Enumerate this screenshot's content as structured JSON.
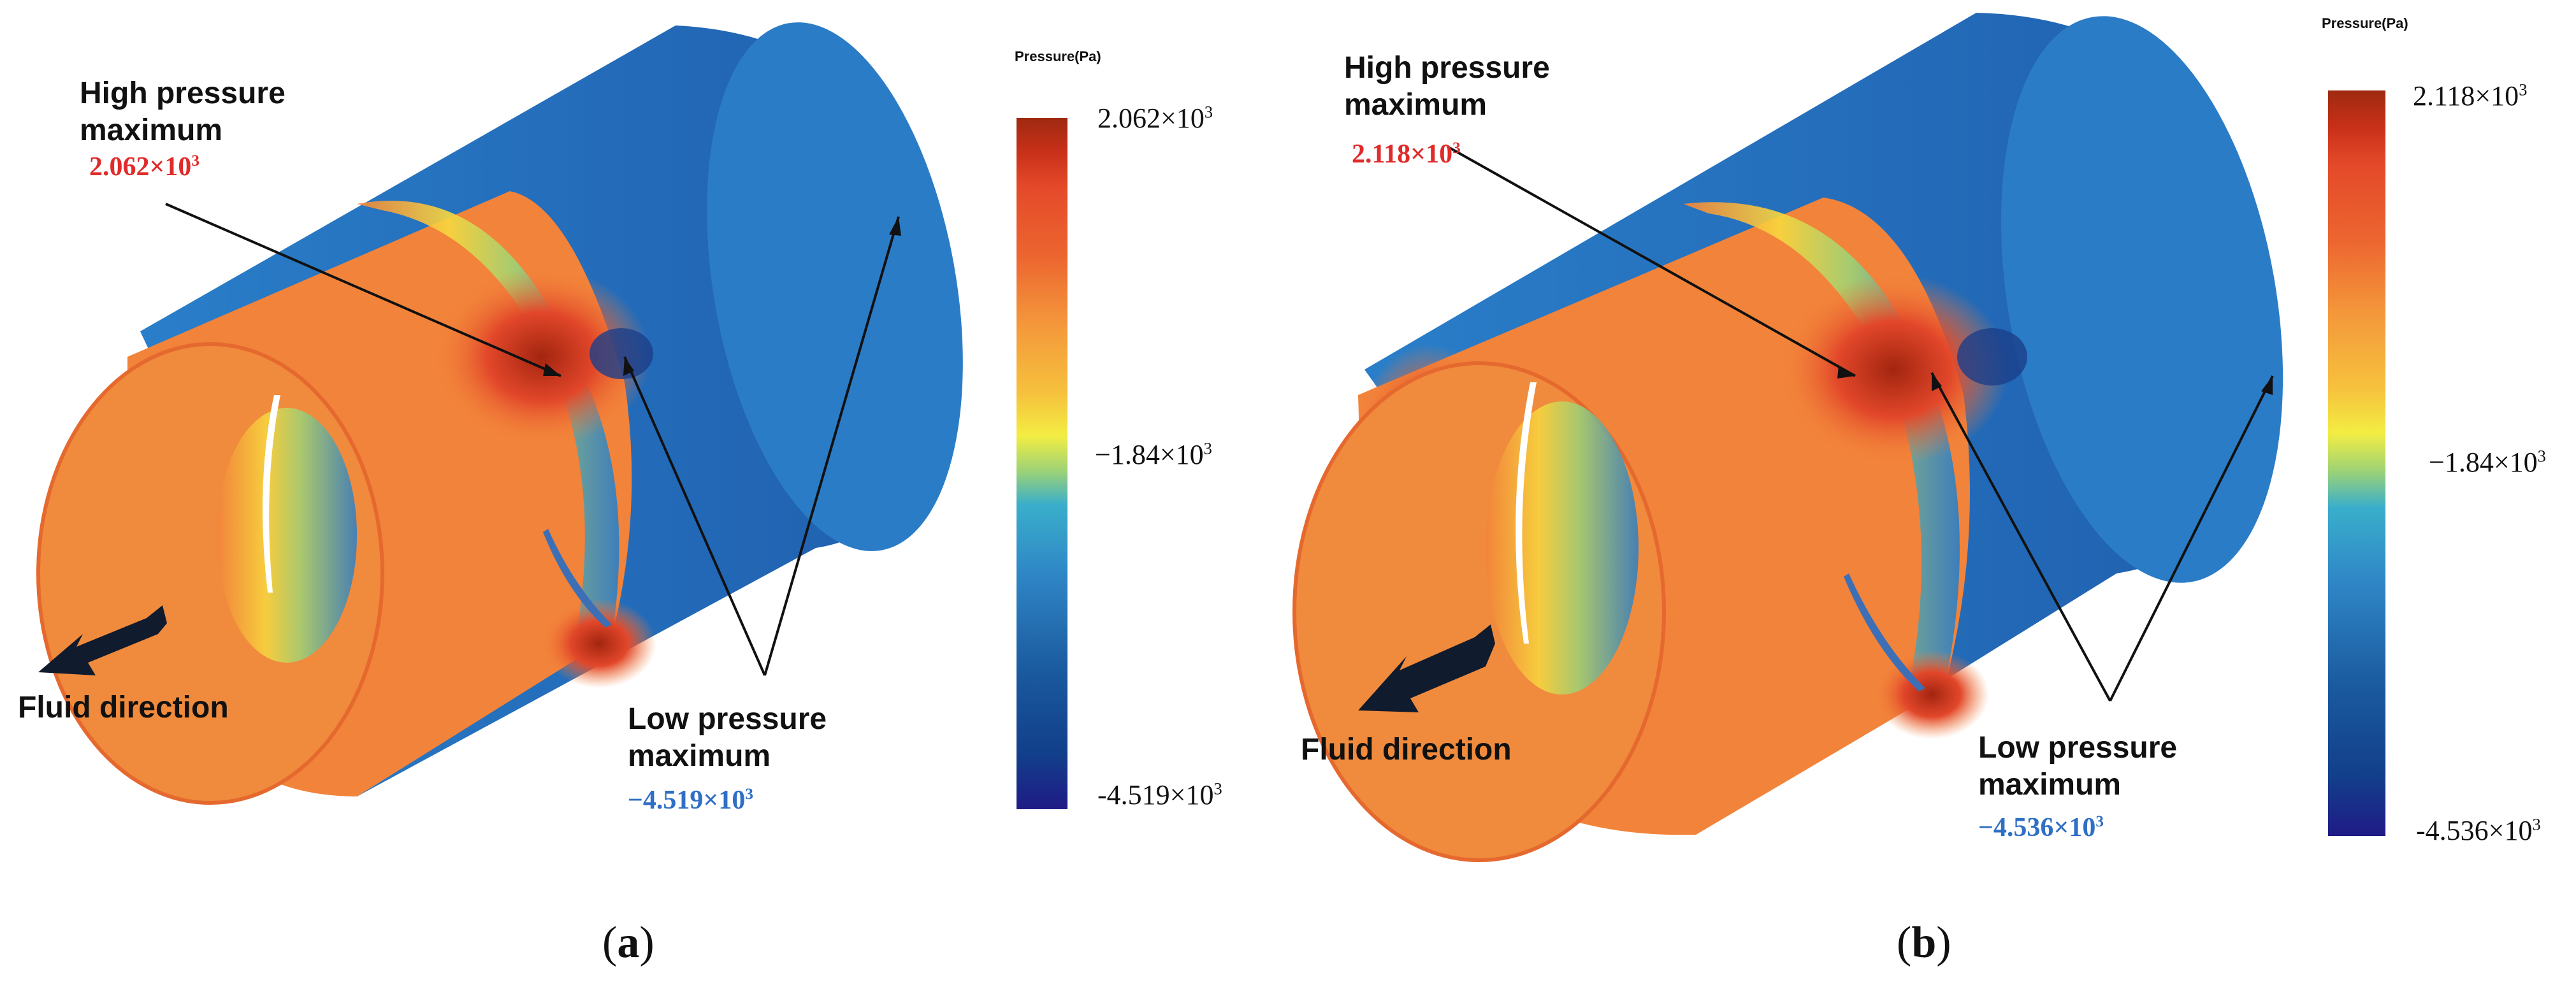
{
  "colors": {
    "high": "#e02b2b",
    "low": "#2f6fc5",
    "colorbar_stops": [
      "#1f1b86",
      "#1b2f86",
      "#123f8a",
      "#1a5a9e",
      "#2673b8",
      "#3a8fcc",
      "#39aecb",
      "#54c2c5",
      "#9ed375",
      "#d9e849",
      "#f3ed43",
      "#f7d33c",
      "#f6b43d",
      "#f4983b",
      "#f07f36",
      "#ec6530",
      "#e44a29",
      "#c93019",
      "#9e2a10"
    ]
  },
  "panels": [
    {
      "id": "a",
      "caption": "a",
      "colorbar_title": "Pressure(Pa)",
      "ticks": {
        "max": "2.062×10",
        "mid": "−1.84×10",
        "min": "-4.519×10"
      },
      "high_label_1": "High pressure",
      "high_label_2": "maximum",
      "high_value": "2.062×10",
      "low_label_1": "Low pressure",
      "low_label_2": "maximum",
      "low_value": "−4.519×10",
      "fluid_label": "Fluid direction"
    },
    {
      "id": "b",
      "caption": "b",
      "colorbar_title": "Pressure(Pa)",
      "ticks": {
        "max": "2.118×10",
        "mid": "−1.84×10",
        "min": "-4.536×10"
      },
      "high_label_1": "High pressure",
      "high_label_2": "maximum",
      "high_value": "2.118×10",
      "low_label_1": "Low pressure",
      "low_label_2": "maximum",
      "low_value": "−4.536×10",
      "fluid_label": "Fluid direction"
    }
  ],
  "exponent": "3"
}
